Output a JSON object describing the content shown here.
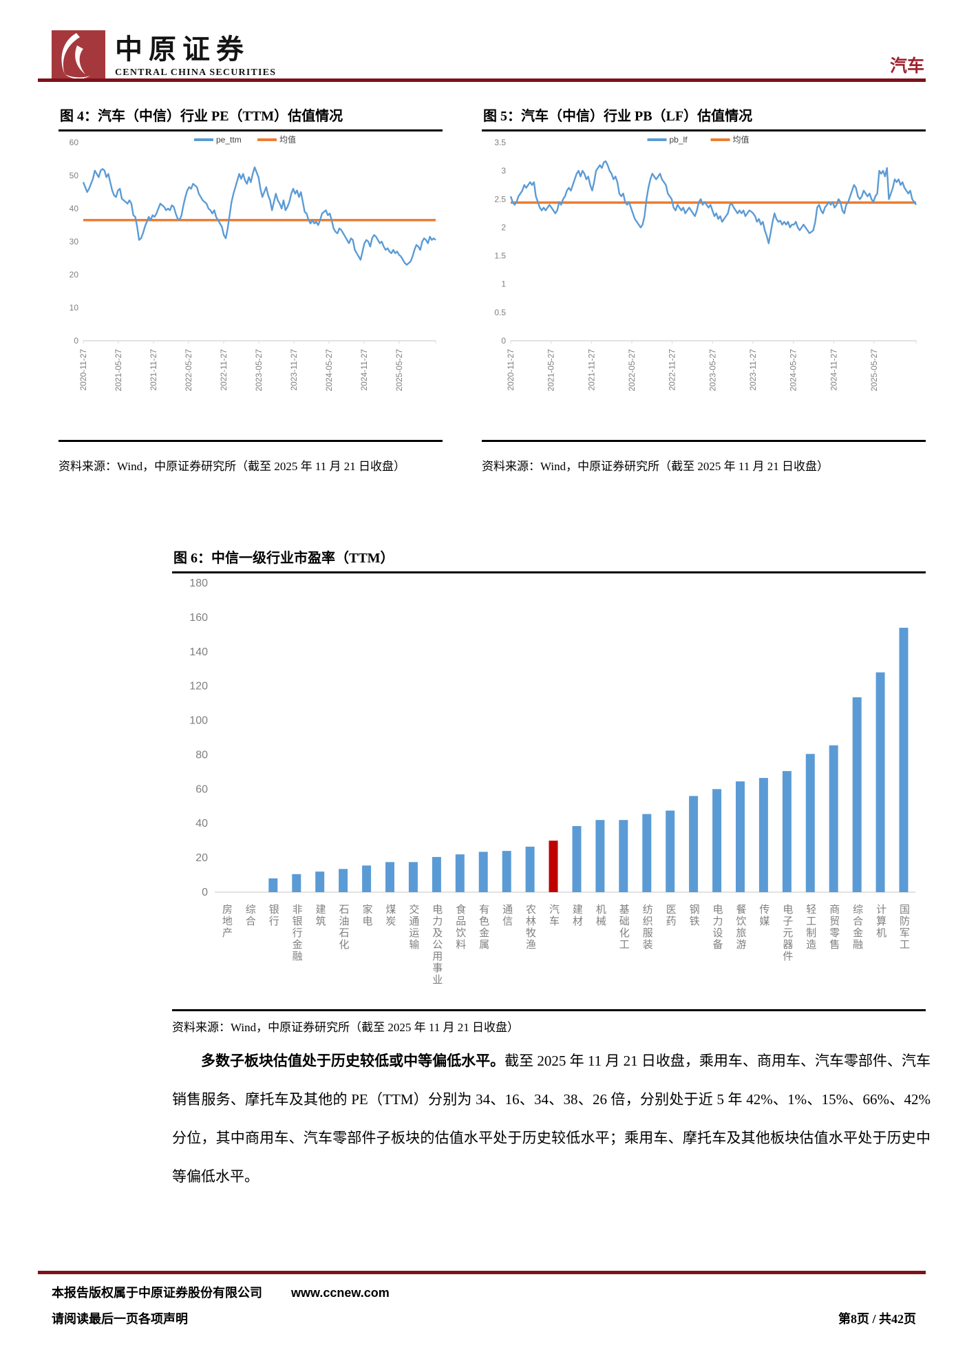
{
  "header": {
    "brand_cn": "中原证券",
    "brand_en": "CENTRAL CHINA SECURITIES",
    "section_label": "汽车"
  },
  "figures": {
    "fig4": {
      "title": "图 4：汽车（中信）行业 PE（TTM）估值情况",
      "source": "资料来源：Wind，中原证券研究所（截至 2025 年 11 月 21 日收盘）"
    },
    "fig5": {
      "title": "图 5：汽车（中信）行业 PB（LF）估值情况",
      "source": "资料来源：Wind，中原证券研究所（截至 2025 年 11 月 21 日收盘）"
    },
    "fig6": {
      "title": "图 6：中信一级行业市盈率（TTM）",
      "source": "资料来源：Wind，中原证券研究所（截至 2025 年 11 月 21 日收盘）"
    }
  },
  "paragraph": {
    "lead": "多数子板块估值处于历史较低或中等偏低水平。",
    "body": "截至 2025 年 11 月 21 日收盘，乘用车、商用车、汽车零部件、汽车销售服务、摩托车及其他的 PE（TTM）分别为 34、16、34、38、26 倍，分别处于近 5 年 42%、1%、15%、66%、42%分位，其中商用车、汽车零部件子板块的估值水平处于历史较低水平；乘用车、摩托车及其他板块估值水平处于历史中等偏低水平。"
  },
  "footer": {
    "copyright": "本报告版权属于中原证券股份有限公司",
    "website": "www.ccnew.com",
    "disclaimer": "请阅读最后一页各项声明",
    "page_info": "第8页 / 共42页"
  },
  "colors": {
    "accent_rule": "#7d1219",
    "series_blue": "#5b9bd5",
    "series_orange": "#ed7d31",
    "highlight_red": "#c00000",
    "tick_gray": "#7f7f7f",
    "axis_gray": "#d9d9d9"
  },
  "chart_data": [
    {
      "type": "line",
      "title": "图 4：汽车（中信）行业 PE（TTM）估值情况",
      "legend": [
        "pe_ttm",
        "均值"
      ],
      "legend_position": "top-center",
      "grid": false,
      "ylim": [
        0,
        60
      ],
      "yticks": [
        "60",
        "50",
        "40",
        "30",
        "20",
        "10",
        "0"
      ],
      "xticklabels": [
        "2020-11-27",
        "2021-05-27",
        "2021-11-27",
        "2022-05-27",
        "2022-11-27",
        "2023-05-27",
        "2023-11-27",
        "2024-05-27",
        "2024-11-27",
        "2025-05-27"
      ],
      "xtick_step_frac": 0.0996,
      "mean_value": 36.5,
      "series": [
        {
          "name": "pe_ttm",
          "color": "#5b9bd5",
          "values": [
            48,
            46.5,
            45,
            46,
            47.5,
            49,
            51.5,
            50.5,
            49.5,
            51.5,
            52,
            51.5,
            49.5,
            50.5,
            48,
            45.5,
            44,
            43.5,
            45.5,
            46,
            43,
            42.5,
            42,
            41.5,
            42.5,
            41.5,
            38,
            37.5,
            34.5,
            30.5,
            31,
            32.5,
            34.5,
            36,
            37.5,
            36.5,
            38,
            37.5,
            38.5,
            40,
            41.5,
            41,
            40.5,
            39.5,
            40,
            39.5,
            41,
            40.5,
            38.5,
            37,
            36.5,
            38,
            41,
            43.5,
            45.5,
            46.5,
            46,
            47.5,
            47,
            46.5,
            44.5,
            43.5,
            42.5,
            42,
            41.5,
            40,
            39.5,
            38.5,
            39.5,
            37.5,
            36.5,
            35.5,
            34.5,
            32,
            31,
            34,
            38,
            42,
            44.5,
            46.5,
            48.5,
            50.5,
            49,
            50.5,
            48.5,
            47.5,
            49.5,
            48,
            50.5,
            52.5,
            51,
            49.5,
            46,
            43.5,
            45,
            46.5,
            44,
            42.5,
            39.5,
            42,
            44.5,
            42.5,
            41.5,
            40,
            42.5,
            39.5,
            40.5,
            42,
            44.5,
            46,
            44.5,
            45.5,
            43.5,
            45,
            42,
            39,
            38.5,
            36.5,
            35.5,
            36.5,
            35.5,
            36,
            35,
            36.5,
            38.5,
            39,
            39.5,
            38,
            38.5,
            36.5,
            34,
            33,
            32.5,
            34,
            33.5,
            32.5,
            31.5,
            30.5,
            29.5,
            31,
            30.5,
            27.5,
            26.5,
            25.5,
            24.5,
            27,
            29.5,
            30.5,
            30,
            28.5,
            31,
            32,
            31.5,
            30.5,
            29.5,
            30,
            28.5,
            27.5,
            28,
            27,
            26.5,
            27.5,
            26.5,
            27,
            26,
            25.5,
            24.5,
            23.5,
            23,
            23.5,
            24,
            25.5,
            27.5,
            29,
            28.5,
            27.5,
            30,
            31,
            30.5,
            29.5,
            31.5,
            30.5,
            31,
            30.5
          ]
        },
        {
          "name": "均值",
          "color": "#ed7d31",
          "constant": 36.5
        }
      ]
    },
    {
      "type": "line",
      "title": "图 5：汽车（中信）行业 PB（LF）估值情况",
      "legend": [
        "pb_lf",
        "均值"
      ],
      "legend_position": "top-center",
      "grid": false,
      "ylim": [
        0,
        3.5
      ],
      "yticks": [
        "3.5",
        "3",
        "2.5",
        "2",
        "1.5",
        "1",
        "0.5",
        "0"
      ],
      "xticklabels": [
        "2020-11-27",
        "2021-05-27",
        "2021-11-27",
        "2022-05-27",
        "2022-11-27",
        "2023-05-27",
        "2023-11-27",
        "2024-05-27",
        "2024-11-27",
        "2025-05-27"
      ],
      "xtick_step_frac": 0.0996,
      "mean_value": 2.44,
      "series": [
        {
          "name": "pb_lf",
          "color": "#5b9bd5",
          "values": [
            2.55,
            2.45,
            2.4,
            2.45,
            2.55,
            2.6,
            2.65,
            2.75,
            2.7,
            2.75,
            2.8,
            2.75,
            2.8,
            2.55,
            2.45,
            2.35,
            2.3,
            2.35,
            2.3,
            2.35,
            2.4,
            2.35,
            2.3,
            2.25,
            2.3,
            2.45,
            2.4,
            2.5,
            2.55,
            2.65,
            2.7,
            2.65,
            2.75,
            2.85,
            2.95,
            3.0,
            2.9,
            3.0,
            2.95,
            2.85,
            2.9,
            2.75,
            2.65,
            2.8,
            3.0,
            3.05,
            3.1,
            3.05,
            3.15,
            3.17,
            3.1,
            3.0,
            2.95,
            2.85,
            2.9,
            2.8,
            2.6,
            2.55,
            2.6,
            2.45,
            2.4,
            2.45,
            2.35,
            2.25,
            2.15,
            2.1,
            2.05,
            2.0,
            2.05,
            2.2,
            2.5,
            2.7,
            2.85,
            2.95,
            2.9,
            2.85,
            2.9,
            2.95,
            2.85,
            2.8,
            2.75,
            2.6,
            2.55,
            2.5,
            2.35,
            2.3,
            2.4,
            2.35,
            2.3,
            2.35,
            2.25,
            2.3,
            2.35,
            2.3,
            2.25,
            2.2,
            2.3,
            2.45,
            2.5,
            2.4,
            2.45,
            2.4,
            2.35,
            2.4,
            2.3,
            2.2,
            2.25,
            2.15,
            2.2,
            2.1,
            2.15,
            2.2,
            2.25,
            2.4,
            2.42,
            2.35,
            2.3,
            2.25,
            2.3,
            2.25,
            2.3,
            2.2,
            2.25,
            2.3,
            2.28,
            2.25,
            2.2,
            2.1,
            2.15,
            2.05,
            2.1,
            1.95,
            1.85,
            1.72,
            1.9,
            2.1,
            2.25,
            2.15,
            2.1,
            2.12,
            2.05,
            2.1,
            2.05,
            2.1,
            2.0,
            2.05,
            2.05,
            2.1,
            2.0,
            1.95,
            2.0,
            2.05,
            2.0,
            1.95,
            1.9,
            1.92,
            1.95,
            2.1,
            2.35,
            2.4,
            2.3,
            2.25,
            2.35,
            2.4,
            2.45,
            2.4,
            2.45,
            2.35,
            2.4,
            2.5,
            2.45,
            2.3,
            2.25,
            2.4,
            2.45,
            2.55,
            2.65,
            2.75,
            2.7,
            2.55,
            2.5,
            2.55,
            2.65,
            2.6,
            2.55,
            2.6,
            2.5,
            2.45,
            2.55,
            2.6,
            3.0,
            2.95,
            3.0,
            2.9,
            3.05,
            2.5,
            2.6,
            2.7,
            2.85,
            2.8,
            2.85,
            2.75,
            2.8,
            2.7,
            2.65,
            2.6,
            2.65,
            2.5,
            2.45,
            2.4
          ]
        },
        {
          "name": "均值",
          "color": "#ed7d31",
          "constant": 2.44
        }
      ]
    },
    {
      "type": "bar",
      "title": "图 6：中信一级行业市盈率（TTM）",
      "grid": false,
      "ylim": [
        0,
        180
      ],
      "yticks": [
        "180",
        "160",
        "140",
        "120",
        "100",
        "80",
        "60",
        "40",
        "20",
        "0"
      ],
      "categories": [
        "房地产",
        "综合",
        "银行",
        "非银行金融",
        "建筑",
        "石油石化",
        "家电",
        "煤炭",
        "交通运输",
        "电力及公用事业",
        "食品饮料",
        "有色金属",
        "通信",
        "农林牧渔",
        "汽车",
        "建材",
        "机械",
        "基础化工",
        "纺织服装",
        "医药",
        "钢铁",
        "电力设备",
        "餐饮旅游",
        "传媒",
        "电子元器件",
        "轻工制造",
        "商贸零售",
        "综合金融",
        "计算机",
        "国防军工"
      ],
      "values": [
        null,
        null,
        8,
        10.5,
        12,
        13.5,
        15.5,
        17.5,
        17.5,
        20.5,
        22,
        23.5,
        24,
        26.5,
        30,
        38.5,
        42,
        42,
        45.5,
        47.5,
        56,
        60,
        64.5,
        66.5,
        70.5,
        80.5,
        85.5,
        113.5,
        128,
        154
      ],
      "bar_color": "#5b9bd5",
      "highlight_index": 14,
      "highlight_color": "#c00000"
    }
  ]
}
